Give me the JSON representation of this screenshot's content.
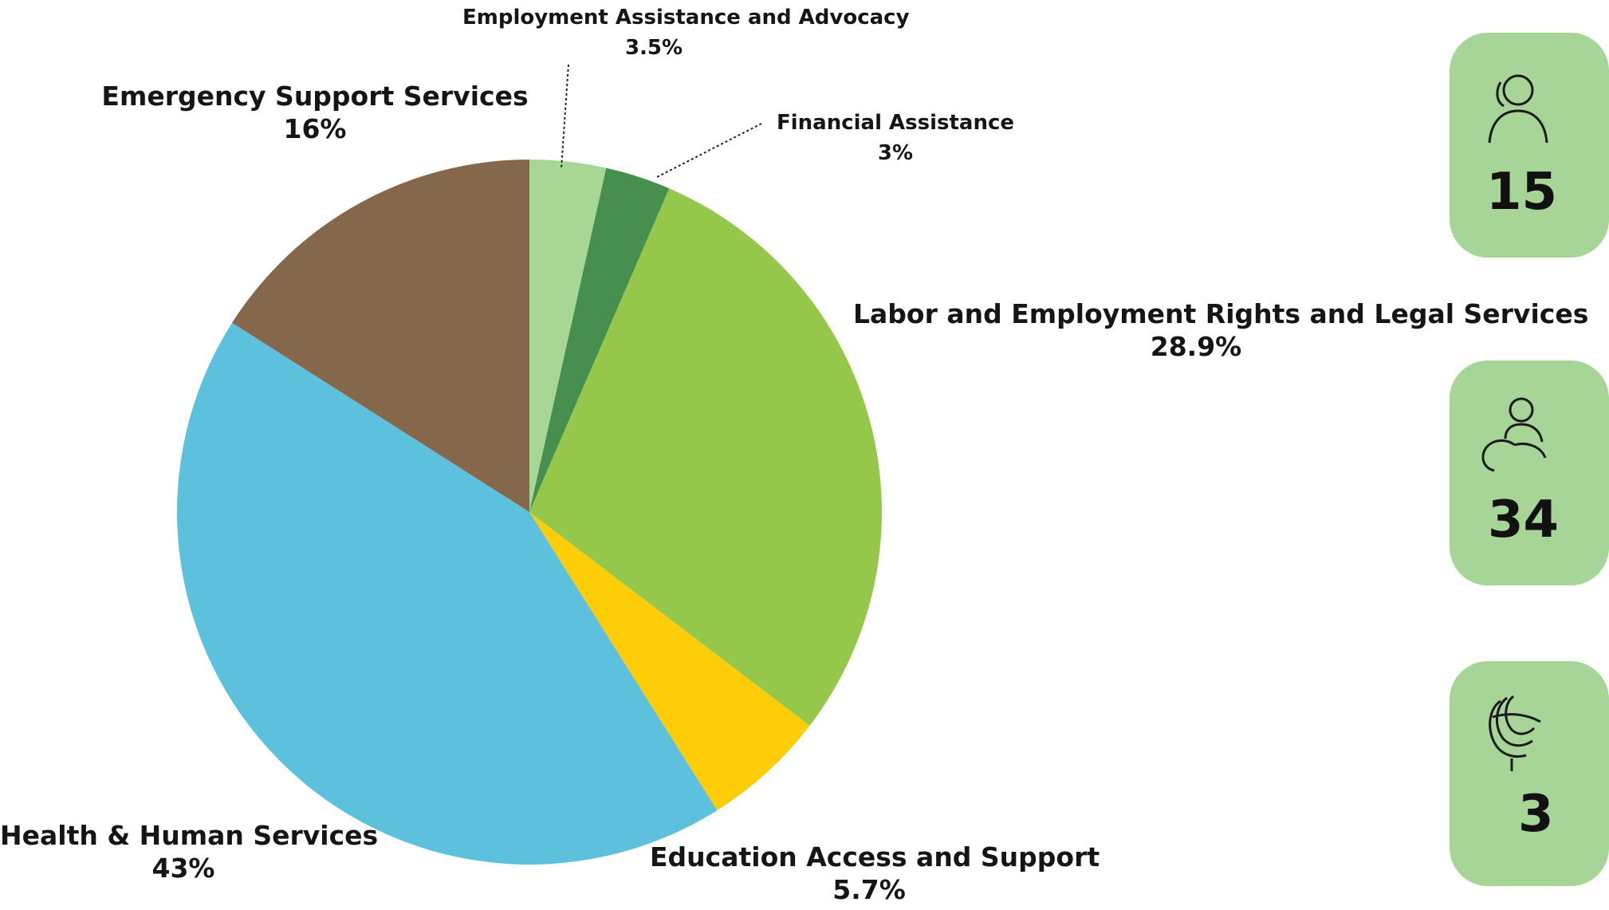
{
  "chart_data": {
    "type": "pie",
    "title": "",
    "slices": [
      {
        "name": "Employment Assistance and Advocacy",
        "value": 3.5,
        "value_label": "3.5%",
        "color": "#a8d694"
      },
      {
        "name": "Financial Assistance",
        "value": 3.0,
        "value_label": "3%",
        "color": "#478f4f"
      },
      {
        "name": "Labor and Employment Rights and Legal Services",
        "value": 28.9,
        "value_label": "28.9%",
        "color": "#95c84a"
      },
      {
        "name": "Education Access and Support",
        "value": 5.7,
        "value_label": "5.7%",
        "color": "#fccd08"
      },
      {
        "name": "Health & Human Services",
        "value": 43.0,
        "value_label": "43%",
        "color": "#5dc0dd"
      },
      {
        "name": "Emergency Support Services",
        "value": 16.0,
        "value_label": "16%",
        "color": "#85684b"
      }
    ],
    "start_angle": "top",
    "direction": "clockwise",
    "legend": "none"
  },
  "stat_cards": [
    {
      "icon": "person-icon",
      "value": "15",
      "color": "#a7d597"
    },
    {
      "icon": "group-icon",
      "value": "34",
      "color": "#a7d597"
    },
    {
      "icon": "globe-icon",
      "value": "3",
      "color": "#a7d597"
    }
  ]
}
